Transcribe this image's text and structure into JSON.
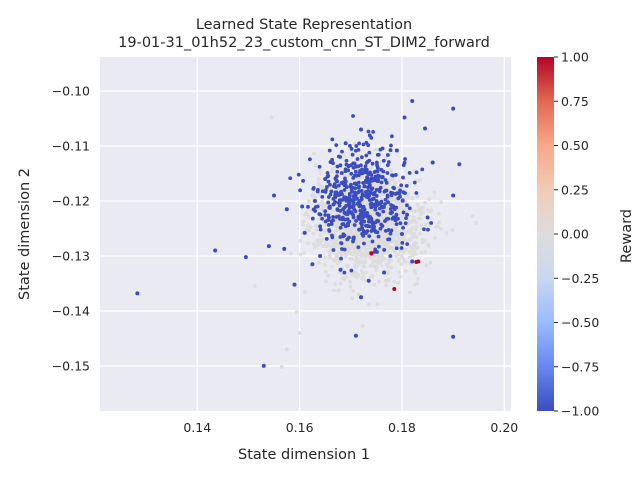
{
  "chart_data": {
    "type": "scatter",
    "title": "Learned State Representation",
    "subtitle": "19-01-31_01h52_23_custom_cnn_ST_DIM2_forward",
    "xlabel": "State dimension 1",
    "ylabel": "State dimension 2",
    "xlim": [
      0.121,
      0.2013
    ],
    "ylim": [
      -0.1582,
      -0.0938
    ],
    "xticks": [
      0.14,
      0.16,
      0.18,
      0.2
    ],
    "xtick_labels": [
      "0.14",
      "0.16",
      "0.18",
      "0.20"
    ],
    "yticks": [
      -0.1,
      -0.11,
      -0.12,
      -0.13,
      -0.14,
      -0.15
    ],
    "ytick_labels": [
      "−0.10",
      "−0.11",
      "−0.12",
      "−0.13",
      "−0.14",
      "−0.15"
    ],
    "grid": true,
    "background": "#eaeaf2",
    "colorbar": {
      "label": "Reward",
      "range": [
        -1.0,
        1.0
      ],
      "ticks": [
        1.0,
        0.75,
        0.5,
        0.25,
        0.0,
        -0.25,
        -0.5,
        -0.75,
        -1.0
      ],
      "tick_labels": [
        "1.00",
        "0.75",
        "0.50",
        "0.25",
        "0.00",
        "−0.25",
        "−0.50",
        "−0.75",
        "−1.00"
      ],
      "colormap": "coolwarm",
      "colors": [
        "#3b4cc0",
        "#6788ee",
        "#9abbff",
        "#c9d7f0",
        "#dddddd",
        "#f2cbb7",
        "#f7a889",
        "#e26952",
        "#b40426"
      ]
    },
    "series": [
      {
        "reward": -1,
        "points": [
          [
            0.1283,
            -0.1368
          ],
          [
            0.1435,
            -0.129
          ],
          [
            0.1495,
            -0.1302
          ],
          [
            0.153,
            -0.15
          ],
          [
            0.154,
            -0.1282
          ],
          [
            0.157,
            -0.1287
          ],
          [
            0.155,
            -0.119
          ],
          [
            0.159,
            -0.1352
          ],
          [
            0.1575,
            -0.1215
          ],
          [
            0.1605,
            -0.121
          ],
          [
            0.161,
            -0.1258
          ],
          [
            0.1625,
            -0.1315
          ],
          [
            0.164,
            -0.13
          ],
          [
            0.171,
            -0.1445
          ],
          [
            0.1755,
            -0.1225
          ],
          [
            0.1805,
            -0.1048
          ],
          [
            0.182,
            -0.1018
          ],
          [
            0.1845,
            -0.1068
          ],
          [
            0.186,
            -0.113
          ],
          [
            0.19,
            -0.1032
          ],
          [
            0.1912,
            -0.1133
          ],
          [
            0.19,
            -0.119
          ],
          [
            0.19,
            -0.1447
          ],
          [
            0.185,
            -0.123
          ],
          [
            0.182,
            -0.131
          ],
          [
            0.179,
            -0.1108
          ],
          [
            0.172,
            -0.107
          ],
          [
            0.169,
            -0.1095
          ],
          [
            0.181,
            -0.1225
          ],
          [
            0.18,
            -0.126
          ],
          [
            0.1735,
            -0.1345
          ],
          [
            0.172,
            -0.1375
          ],
          [
            0.1765,
            -0.133
          ],
          [
            0.168,
            -0.1325
          ],
          [
            0.165,
            -0.116
          ],
          [
            0.163,
            -0.12
          ]
        ]
      },
      {
        "reward": 1,
        "points": [
          [
            0.1832,
            -0.131
          ],
          [
            0.1828,
            -0.1311
          ],
          [
            0.174,
            -0.1295
          ],
          [
            0.1785,
            -0.136
          ]
        ]
      },
      {
        "reward": 0,
        "points": [
          [
            0.1545,
            -0.1048
          ],
          [
            0.1565,
            -0.1502
          ],
          [
            0.1575,
            -0.147
          ],
          [
            0.1945,
            -0.124
          ],
          [
            0.16,
            -0.144
          ],
          [
            0.161,
            -0.1365
          ]
        ]
      }
    ]
  }
}
